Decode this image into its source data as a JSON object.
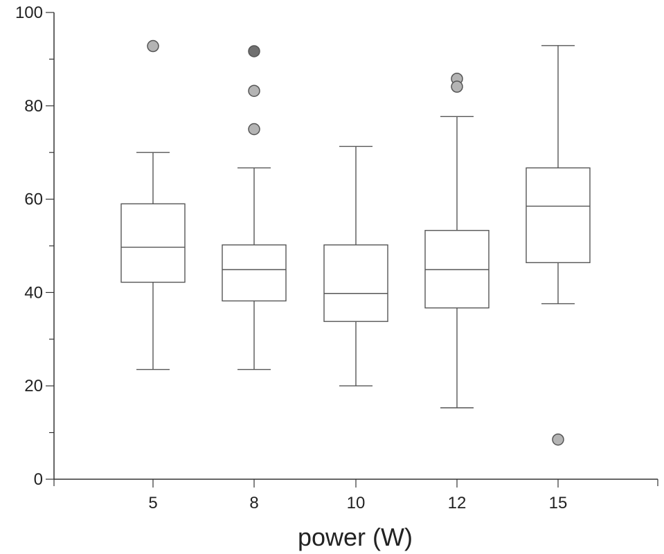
{
  "chart_data": {
    "type": "box",
    "title": "",
    "xlabel": "power (W)",
    "ylabel": "",
    "ylim": [
      0,
      100
    ],
    "yticks": [
      0,
      20,
      40,
      60,
      80,
      100
    ],
    "grid": false,
    "categories": [
      "5",
      "8",
      "10",
      "12",
      "15"
    ],
    "boxes": [
      {
        "category": "5",
        "whisker_low": 23.5,
        "q1": 42.2,
        "median": 49.7,
        "q3": 59.0,
        "whisker_high": 70.0,
        "outliers": [
          92.8
        ]
      },
      {
        "category": "8",
        "whisker_low": 23.5,
        "q1": 38.2,
        "median": 44.9,
        "q3": 50.2,
        "whisker_high": 66.7,
        "outliers": [
          91.7,
          83.2,
          75.0
        ]
      },
      {
        "category": "10",
        "whisker_low": 20.0,
        "q1": 33.8,
        "median": 39.8,
        "q3": 50.2,
        "whisker_high": 71.3,
        "outliers": []
      },
      {
        "category": "12",
        "whisker_low": 15.3,
        "q1": 36.7,
        "median": 44.9,
        "q3": 53.3,
        "whisker_high": 77.7,
        "outliers": [
          85.8,
          84.1
        ]
      },
      {
        "category": "15",
        "whisker_low": 37.6,
        "q1": 46.4,
        "median": 58.5,
        "q3": 66.7,
        "whisker_high": 92.9,
        "outliers": [
          8.5
        ]
      }
    ],
    "colors": {
      "box_stroke": "#555555",
      "outlier_fill": "#b4b4b4",
      "outlier_fill_dark": "#707070"
    }
  }
}
